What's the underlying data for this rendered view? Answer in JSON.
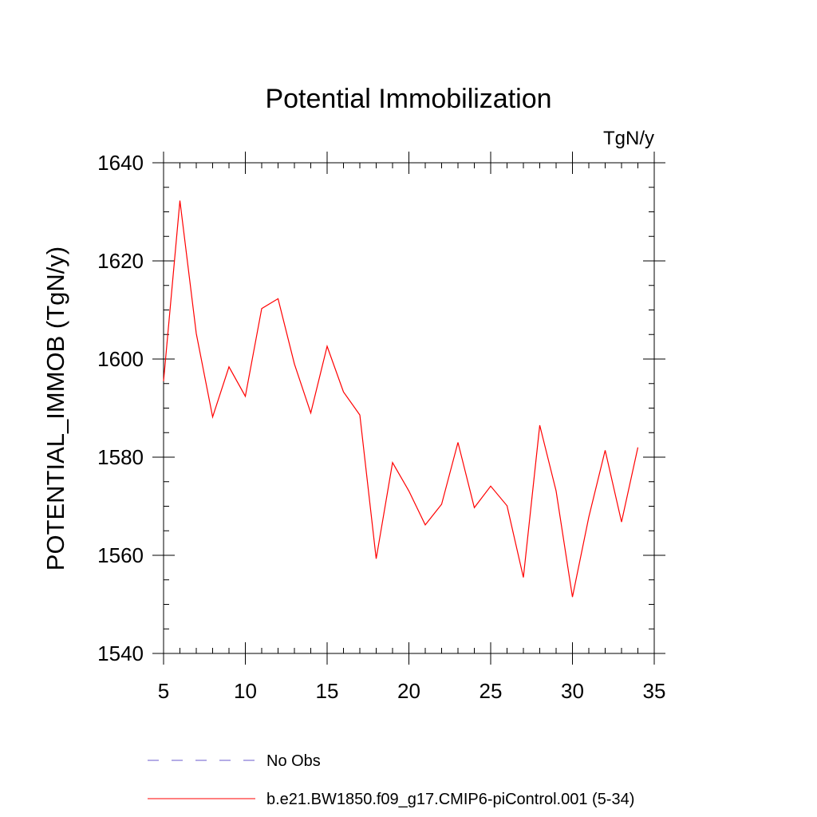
{
  "chart_data": {
    "type": "line",
    "title": "Potential Immobilization",
    "units_label": "TgN/y",
    "ylabel": "POTENTIAL_IMMOB  (TgN/y)",
    "xlabel": "",
    "xlim": [
      5,
      35
    ],
    "ylim": [
      1540,
      1640
    ],
    "x_ticks": [
      5,
      10,
      15,
      20,
      25,
      30,
      35
    ],
    "y_ticks": [
      1540,
      1560,
      1580,
      1600,
      1620,
      1640
    ],
    "grid": false,
    "series": [
      {
        "name": "b.e21.BW1850.f09_g17.CMIP6-piControl.001 (5-34)",
        "color": "#ff0000",
        "style": "solid",
        "x": [
          5,
          6,
          7,
          8,
          9,
          10,
          11,
          12,
          13,
          14,
          15,
          16,
          17,
          18,
          19,
          20,
          21,
          22,
          23,
          24,
          25,
          26,
          27,
          28,
          29,
          30,
          31,
          32,
          33,
          34
        ],
        "values": [
          1595.5,
          1632.3,
          1605.2,
          1588.2,
          1598.4,
          1592.4,
          1610.3,
          1612.3,
          1599.0,
          1589.0,
          1602.6,
          1593.3,
          1588.6,
          1559.3,
          1578.9,
          1573.1,
          1566.2,
          1570.4,
          1583.0,
          1569.7,
          1574.1,
          1570.1,
          1555.5,
          1586.5,
          1573.1,
          1551.5,
          1567.8,
          1581.4,
          1566.8,
          1582.0
        ]
      }
    ],
    "legend": {
      "placement": "bottom",
      "entries": [
        {
          "label": "No Obs",
          "color": "#6a5acd",
          "style": "dashed"
        },
        {
          "label": "b.e21.BW1850.f09_g17.CMIP6-piControl.001 (5-34)",
          "color": "#ff0000",
          "style": "solid"
        }
      ]
    }
  }
}
